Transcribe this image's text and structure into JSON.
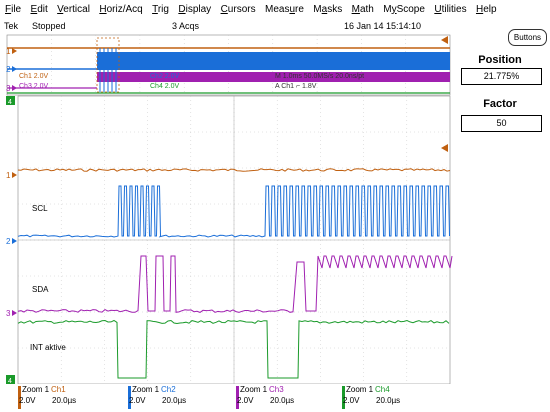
{
  "menu": [
    "File",
    "Edit",
    "Vertical",
    "Horiz/Acq",
    "Trig",
    "Display",
    "Cursors",
    "Measure",
    "Masks",
    "Math",
    "MyScope",
    "Utilities",
    "Help"
  ],
  "status": {
    "brand": "Tek",
    "state": "Stopped",
    "acqs": "3 Acqs",
    "datetime": "16 Jan 14 15:14:10"
  },
  "side": {
    "buttons_label": "Buttons",
    "position_label": "Position",
    "position_value": "21.775%",
    "factor_label": "Factor",
    "factor_value": "50"
  },
  "overview": {
    "line1": "Ch1    2.0V",
    "line2": "Ch3    2.0V",
    "ch2": "Ch2      2.0V",
    "ch4": "Ch4      2.0V",
    "timebase": "M 1.0ms 50.0MS/s     20.0ns/pt",
    "trig": "A   Ch1  ⌐  1.8V"
  },
  "labels": {
    "scl": "SCL",
    "sda": "SDA",
    "int": "INT aktive"
  },
  "markers": {
    "m1": "1",
    "m2": "2",
    "m3": "3",
    "m4": "4"
  },
  "bottom": [
    {
      "zoom": "Zoom 1",
      "ch": "Ch1",
      "volts": "2.0V",
      "time": "20.0µs",
      "color": "#c06010"
    },
    {
      "zoom": "Zoom 1",
      "ch": "Ch2",
      "volts": "2.0V",
      "time": "20.0µs",
      "color": "#1a6ed8"
    },
    {
      "zoom": "Zoom 1",
      "ch": "Ch3",
      "volts": "2.0V",
      "time": "20.0µs",
      "color": "#a020b0"
    },
    {
      "zoom": "Zoom 1",
      "ch": "Ch4",
      "volts": "2.0V",
      "time": "20.0µs",
      "color": "#1a9a2a"
    }
  ],
  "colors": {
    "ch1": "#c06010",
    "ch2": "#1a6ed8",
    "ch3": "#a020b0",
    "ch4": "#1a9a2a",
    "grid": "#c8c8c8"
  }
}
